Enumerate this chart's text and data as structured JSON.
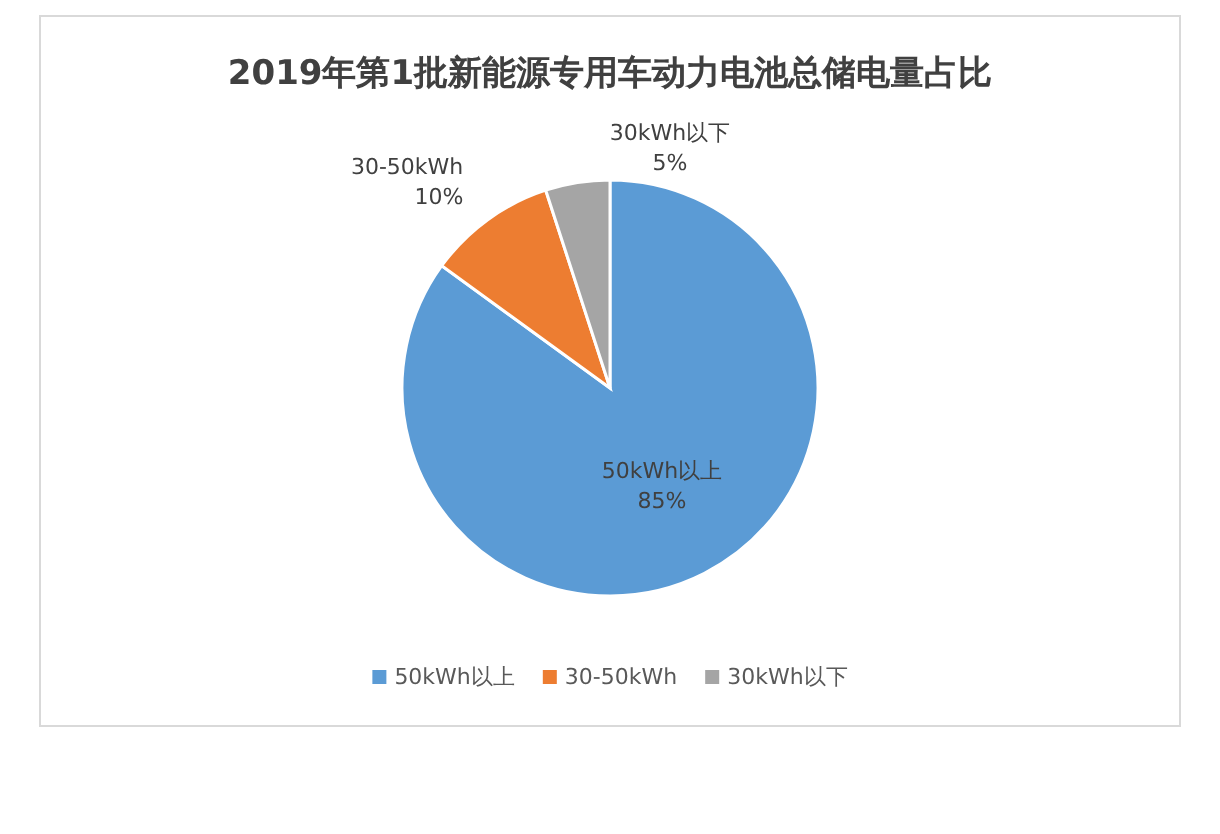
{
  "chart_data": {
    "type": "pie",
    "title": "2019年第1批新能源专用车动力电池总储电量占比",
    "categories": [
      "50kWh以上",
      "30-50kWh",
      "30kWh以下"
    ],
    "values": [
      85,
      10,
      5
    ],
    "value_labels": [
      "85%",
      "10%",
      "5%"
    ],
    "colors": [
      "#5b9bd5",
      "#ed7d31",
      "#a5a5a5"
    ],
    "legend": "bottom"
  }
}
